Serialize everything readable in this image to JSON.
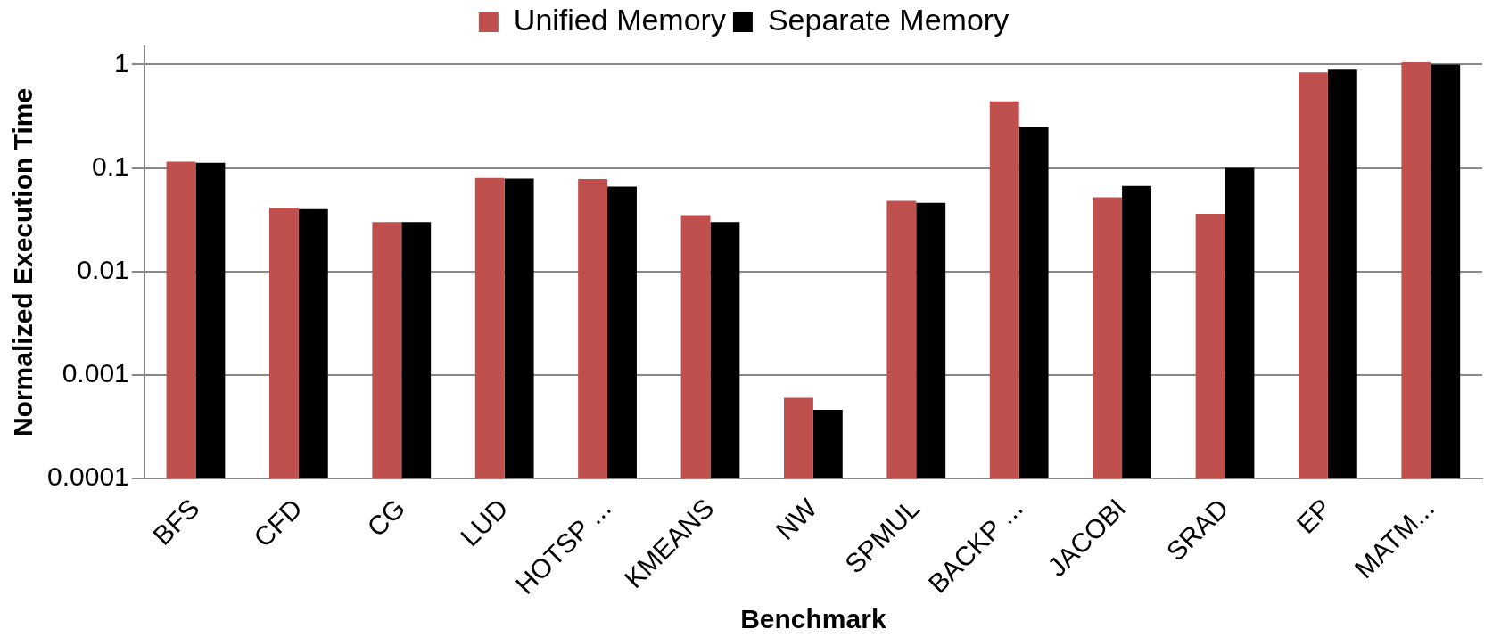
{
  "chart_data": {
    "type": "bar",
    "categories": [
      "BFS",
      "CFD",
      "CG",
      "LUD",
      "HOTSP ...",
      "KMEANS",
      "NW",
      "SPMUL",
      "BACKP ...",
      "JACOBI",
      "SRAD",
      "EP",
      "MATM..."
    ],
    "series": [
      {
        "name": "Unified Memory",
        "color": "#c0504d",
        "values": [
          0.115,
          0.041,
          0.03,
          0.08,
          0.078,
          0.035,
          0.0006,
          0.048,
          0.44,
          0.052,
          0.036,
          0.84,
          1.05
        ]
      },
      {
        "name": "Separate Memory",
        "color": "#000000",
        "values": [
          0.112,
          0.04,
          0.03,
          0.079,
          0.066,
          0.03,
          0.00046,
          0.046,
          0.25,
          0.067,
          0.1,
          0.89,
          1.0
        ]
      }
    ],
    "xlabel": "Benchmark",
    "ylabel": "Normalized Execution Time",
    "log": true,
    "ylim": [
      0.0001,
      1.5
    ],
    "yticks": [
      0.0001,
      0.001,
      0.01,
      0.1,
      1
    ],
    "grid": "y",
    "legend": "top"
  }
}
